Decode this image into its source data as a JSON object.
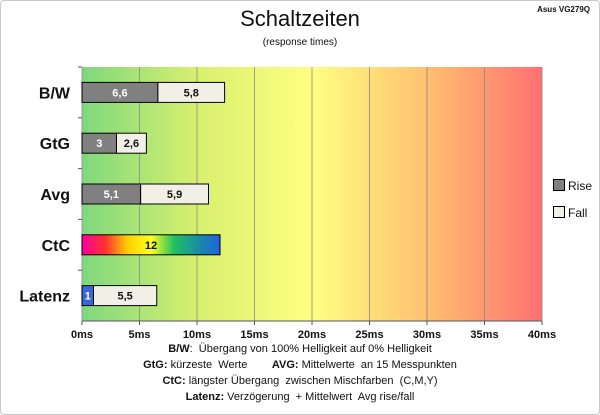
{
  "model": "Asus VG279Q",
  "chart_data": {
    "type": "bar",
    "title": "Schaltzeiten",
    "subtitle": "(response times)",
    "orientation": "horizontal",
    "stacked": true,
    "categories": [
      "B/W",
      "GtG",
      "Avg",
      "CtC",
      "Latenz"
    ],
    "series": [
      {
        "name": "Rise",
        "values": [
          6.6,
          3,
          5.1,
          12,
          1
        ],
        "labels": [
          "6,6",
          "3",
          "5,1",
          "12",
          "1"
        ]
      },
      {
        "name": "Fall",
        "values": [
          5.8,
          2.6,
          5.9,
          null,
          5.5
        ],
        "labels": [
          "5,8",
          "2,6",
          "5,9",
          "",
          "5,5"
        ]
      }
    ],
    "xlim": [
      0,
      40
    ],
    "xticks": [
      "0ms",
      "5ms",
      "10ms",
      "15ms",
      "20ms",
      "25ms",
      "30ms",
      "35ms",
      "40ms"
    ],
    "xtick_values": [
      0,
      5,
      10,
      15,
      20,
      25,
      30,
      35,
      40
    ],
    "grid": true,
    "legend_position": "right",
    "background_gradient": [
      "#7ed87e",
      "#d8f06e",
      "#ffff80",
      "#ffc070",
      "#ff7070"
    ],
    "colors": {
      "rise": "#808080",
      "fall": "#f2f0e6",
      "ctc_gradient": [
        "#ff00a0",
        "#ff3030",
        "#ffd000",
        "#ffff20",
        "#20c060",
        "#1890a0",
        "#2060e0"
      ],
      "latenz_rise": "#3a66d8"
    }
  },
  "legend": {
    "rise": "Rise",
    "fall": "Fall"
  },
  "footnotes": [
    {
      "parts": [
        {
          "b": "B/W"
        },
        {
          "t": ":  Übergang von 100% Helligkeit auf 0% Helligkeit"
        }
      ]
    },
    {
      "parts": [
        {
          "b": "GtG:"
        },
        {
          "t": " kürzeste  Werte        "
        },
        {
          "b": "AVG:"
        },
        {
          "t": " Mittelwerte  an 15 Messpunkten"
        }
      ]
    },
    {
      "parts": [
        {
          "b": "CtC:"
        },
        {
          "t": " längster Übergang  zwischen Mischfarben  (C,M,Y)"
        }
      ]
    },
    {
      "parts": [
        {
          "b": "Latenz:"
        },
        {
          "t": " Verzögerung  + Mittelwert  Avg rise/fall"
        }
      ]
    }
  ]
}
